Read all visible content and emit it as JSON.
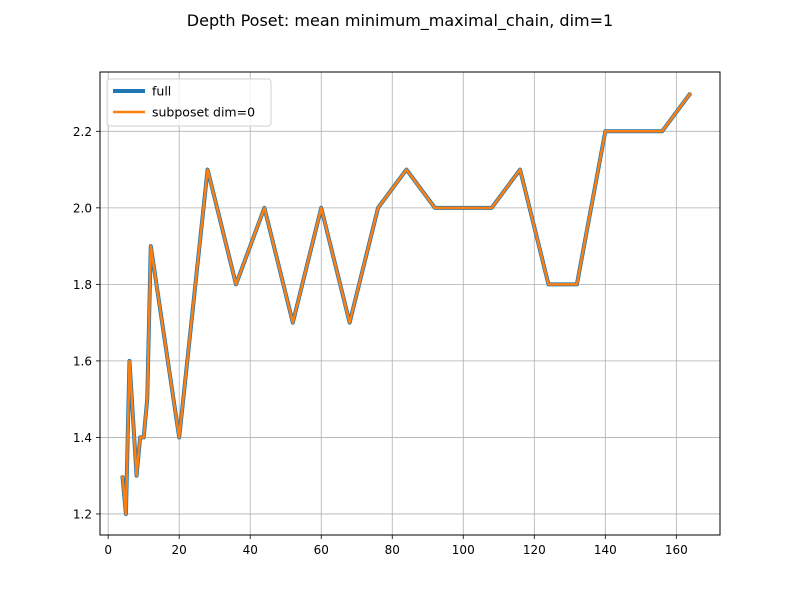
{
  "chart_data": {
    "type": "line",
    "title": "Depth Poset: mean minimum_maximal_chain, dim=1",
    "xlabel": "",
    "ylabel": "",
    "xlim": [
      -2.3,
      172.3
    ],
    "ylim": [
      1.145,
      2.355
    ],
    "xticks": [
      0,
      20,
      40,
      60,
      80,
      100,
      120,
      140,
      160
    ],
    "yticks": [
      1.2,
      1.4,
      1.6,
      1.8,
      2.0,
      2.2
    ],
    "xtick_labels": [
      "0",
      "20",
      "40",
      "60",
      "80",
      "100",
      "120",
      "140",
      "160"
    ],
    "ytick_labels": [
      "1.2",
      "1.4",
      "1.6",
      "1.8",
      "2.0",
      "2.2"
    ],
    "grid": true,
    "legend_position": "top-left",
    "x": [
      4,
      5,
      6,
      8,
      9,
      10,
      11,
      12,
      20,
      28,
      36,
      44,
      52,
      60,
      68,
      76,
      84,
      92,
      100,
      108,
      116,
      124,
      132,
      140,
      148,
      156,
      164
    ],
    "series": [
      {
        "name": "full",
        "color": "#1f77b4",
        "values": [
          1.3,
          1.2,
          1.6,
          1.3,
          1.4,
          1.4,
          1.5,
          1.9,
          1.4,
          2.1,
          1.8,
          2.0,
          1.7,
          2.0,
          1.7,
          2.0,
          2.1,
          2.0,
          2.0,
          2.0,
          2.1,
          1.8,
          1.8,
          2.2,
          2.2,
          2.2,
          2.3
        ]
      },
      {
        "name": "subposet dim=0",
        "color": "#ff7f0e",
        "values": [
          1.3,
          1.2,
          1.6,
          1.3,
          1.4,
          1.4,
          1.5,
          1.9,
          1.4,
          2.1,
          1.8,
          2.0,
          1.7,
          2.0,
          1.7,
          2.0,
          2.1,
          2.0,
          2.0,
          2.0,
          2.1,
          1.8,
          1.8,
          2.2,
          2.2,
          2.2,
          2.3
        ]
      }
    ]
  }
}
